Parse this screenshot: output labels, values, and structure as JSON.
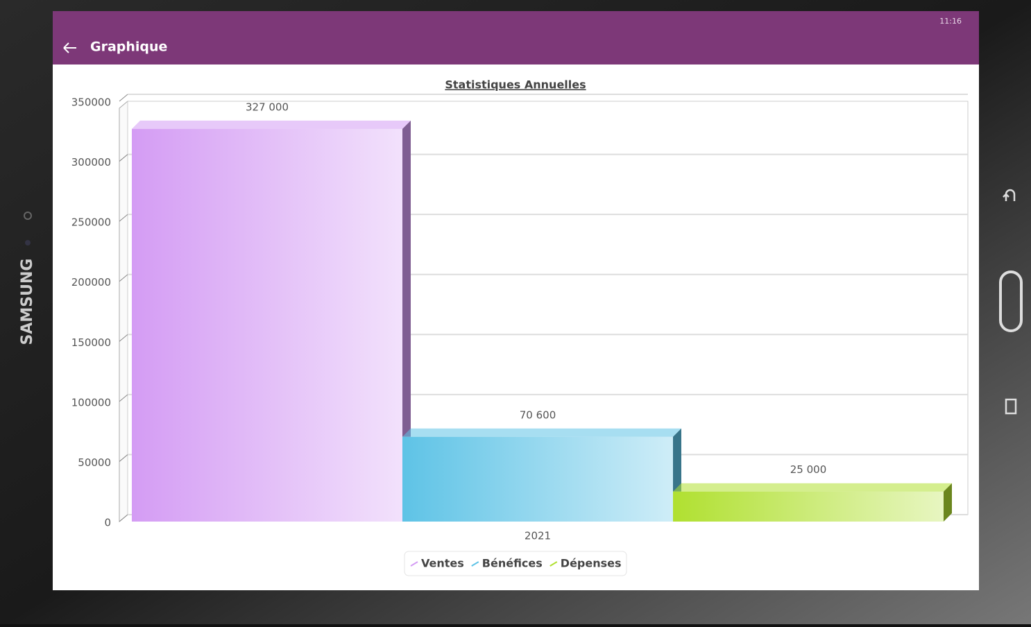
{
  "device": {
    "brand": "SAMSUNG"
  },
  "status_bar": {
    "time": "11:16"
  },
  "app_bar": {
    "title": "Graphique"
  },
  "chart_data": {
    "type": "bar",
    "title": "Statistiques Annuelles",
    "categories": [
      "2021"
    ],
    "series": [
      {
        "name": "Ventes",
        "color": "#d49cf4",
        "values": [
          327000
        ],
        "value_labels": [
          "327 000"
        ]
      },
      {
        "name": "Bénéfices",
        "color": "#5ec3e6",
        "values": [
          70600
        ],
        "value_labels": [
          "70 600"
        ]
      },
      {
        "name": "Dépenses",
        "color": "#b0e030",
        "values": [
          25000
        ],
        "value_labels": [
          "25 000"
        ]
      }
    ],
    "ylim": [
      0,
      350000
    ],
    "yticks": [
      0,
      50000,
      100000,
      150000,
      200000,
      250000,
      300000,
      350000
    ],
    "grid": true,
    "legend": "bottom"
  }
}
